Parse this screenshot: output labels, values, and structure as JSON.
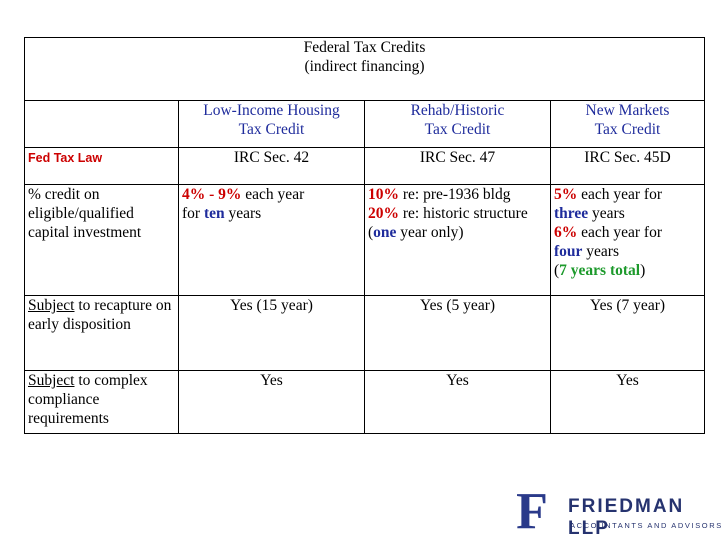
{
  "title": {
    "line1": "Federal Tax Credits",
    "line2": "(indirect financing)"
  },
  "columns": [
    {
      "line1": "Low-Income Housing",
      "line2": "Tax Credit"
    },
    {
      "line1": "Rehab/Historic",
      "line2": "Tax Credit"
    },
    {
      "line1": "New Markets",
      "line2": "Tax Credit"
    }
  ],
  "fed_tax_law": {
    "label": "Fed Tax Law",
    "values": [
      "IRC Sec. 42",
      "IRC Sec. 47",
      "IRC Sec. 45D"
    ]
  },
  "credit": {
    "label": "% credit on eligible/qualified capital investment",
    "lih": {
      "rate": "4% - 9%",
      "t1": " each year",
      "t2": "for ",
      "years": "ten",
      "t3": " years"
    },
    "rehab": {
      "rate1": "10%",
      "desc1": " re: pre-1936 bldg",
      "rate2": "20%",
      "desc2": " re: historic structure",
      "open": "(",
      "one": "one",
      "close": " year only)"
    },
    "nmtc": {
      "rate1": "5%",
      "t1": " each year for",
      "years1": "three",
      "t2": " years",
      "rate2": "6%",
      "t3": " each year for",
      "years2": "four",
      "t4": " years",
      "open": "(",
      "total": "7 years total",
      "close": ")"
    }
  },
  "recapture": {
    "label_u": "Subject",
    "label_rest": " to recapture on early disposition",
    "values": [
      "Yes (15 year)",
      "Yes (5 year)",
      "Yes (7 year)"
    ]
  },
  "compliance": {
    "label_u": "Subject",
    "label_rest": " to complex compliance requirements",
    "values": [
      "Yes",
      "Yes",
      "Yes"
    ]
  },
  "logo": {
    "mark": "F",
    "name": "FRIEDMAN LLP",
    "tagline": "ACCOUNTANTS AND ADVISORS"
  },
  "colors": {
    "heading_blue": "#1f2c9c",
    "accent_red": "#cc0000",
    "accent_green": "#1d9a2c"
  }
}
